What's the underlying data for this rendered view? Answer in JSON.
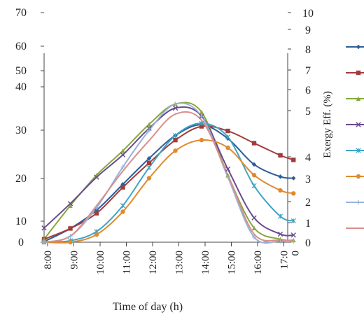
{
  "chart_data": {
    "type": "line",
    "title": "",
    "xlabel": "Time of day (h)",
    "ylabel_left": "",
    "ylabel_right": "Exergy Eff. (%)",
    "x": [
      7.5,
      8.5,
      9.5,
      10.5,
      11.5,
      12.5,
      13.5,
      14.5,
      15.5,
      16.5,
      17.0
    ],
    "x_tick_labels": [
      "8:00",
      "9:00",
      "10:00",
      "11:00",
      "12:00",
      "13:00",
      "14:00",
      "15:00",
      "16:00",
      "17:0\n0"
    ],
    "y_left_tick_labels": [
      "0",
      "10",
      "20",
      "30",
      "40",
      "50",
      "60",
      "70"
    ],
    "y_right_tick_labels": [
      "0",
      "1",
      "2",
      "3",
      "4",
      "5",
      "6",
      "7",
      "8",
      "9",
      "10"
    ],
    "y_left_range": [
      0,
      70
    ],
    "y_right_range": [
      0,
      10
    ],
    "grid": false,
    "legend_position": "right",
    "series": [
      {
        "color": "#2e5d9a",
        "marker": "diamond",
        "axis": "left",
        "values": [
          0.2,
          4.5,
          10.5,
          19.0,
          27.5,
          35.0,
          38.5,
          34.0,
          25.5,
          21.5,
          21.0
        ]
      },
      {
        "color": "#a33b3b",
        "marker": "square",
        "axis": "left",
        "values": [
          1.0,
          4.5,
          9.5,
          18.0,
          26.0,
          33.5,
          38.0,
          36.5,
          32.5,
          28.5,
          27.0
        ]
      },
      {
        "color": "#86a83c",
        "marker": "triangle",
        "axis": "right",
        "values": [
          0.15,
          1.8,
          3.3,
          4.5,
          5.8,
          6.8,
          6.4,
          3.3,
          0.7,
          0.15,
          0.1
        ]
      },
      {
        "color": "#6a4a90",
        "marker": "x",
        "axis": "right",
        "values": [
          0.7,
          1.9,
          3.2,
          4.3,
          5.6,
          6.6,
          6.2,
          3.6,
          1.2,
          0.4,
          0.35
        ]
      },
      {
        "color": "#3ea4c4",
        "marker": "asterisk",
        "axis": "left",
        "values": [
          0.0,
          0.5,
          3.5,
          12.0,
          24.5,
          35.0,
          39.0,
          34.5,
          18.5,
          8.5,
          7.0
        ]
      },
      {
        "color": "#e08a2e",
        "marker": "circle",
        "axis": "left",
        "values": [
          0.0,
          0.0,
          2.5,
          10.0,
          21.0,
          30.0,
          33.5,
          31.0,
          22.0,
          17.0,
          16.0
        ]
      },
      {
        "color": "#97b3da",
        "marker": "plus",
        "axis": "right",
        "values": [
          0.0,
          0.3,
          1.7,
          3.7,
          5.5,
          6.8,
          6.2,
          3.2,
          0.25,
          0.05,
          0.05
        ]
      },
      {
        "color": "#d98e8e",
        "marker": "none",
        "axis": "right",
        "values": [
          0.0,
          0.3,
          1.8,
          3.5,
          5.0,
          6.3,
          6.0,
          3.3,
          0.4,
          0.1,
          0.1
        ]
      }
    ]
  }
}
